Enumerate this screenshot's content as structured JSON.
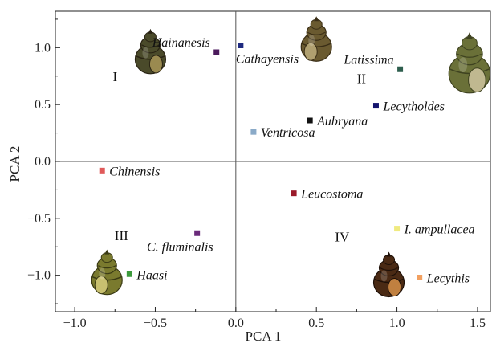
{
  "chart_data": {
    "type": "scatter",
    "xlabel": "PCA 1",
    "ylabel": "PCA 2",
    "xlim": [
      -1.12,
      1.58
    ],
    "ylim": [
      -1.32,
      1.32
    ],
    "xticks": [
      -1.0,
      -0.5,
      0.0,
      0.5,
      1.0,
      1.5
    ],
    "yticks": [
      -1.0,
      -0.5,
      0.0,
      0.5,
      1.0
    ],
    "xtick_labels": [
      "−1.0",
      "−0.5",
      "0.0",
      "0.5",
      "1.0",
      "1.5"
    ],
    "ytick_labels": [
      "−1.0",
      "−0.5",
      "0.0",
      "0.5",
      "1.0"
    ],
    "reference_lines": {
      "x": 0,
      "y": 0
    },
    "points": [
      {
        "label": "Hainanesis",
        "x": -0.12,
        "y": 0.96,
        "color": "#4b1a5c",
        "label_side": "upper-left"
      },
      {
        "label": "Cathayensis",
        "x": 0.03,
        "y": 1.02,
        "color": "#1f2a80",
        "label_side": "below"
      },
      {
        "label": "Latissima",
        "x": 1.02,
        "y": 0.81,
        "color": "#2e5e4e",
        "label_side": "upper-left"
      },
      {
        "label": "Lecytholdes",
        "x": 0.87,
        "y": 0.49,
        "color": "#14146e",
        "label_side": "right"
      },
      {
        "label": "Aubryana",
        "x": 0.46,
        "y": 0.36,
        "color": "#111111",
        "label_side": "right"
      },
      {
        "label": "Ventricosa",
        "x": 0.11,
        "y": 0.26,
        "color": "#8aaac8",
        "label_side": "right"
      },
      {
        "label": "Chinensis",
        "x": -0.83,
        "y": -0.08,
        "color": "#e05a5a",
        "label_side": "right"
      },
      {
        "label": "Leucostoma",
        "x": 0.36,
        "y": -0.28,
        "color": "#9a1a2a",
        "label_side": "right"
      },
      {
        "label": "C. fluminalis",
        "x": -0.24,
        "y": -0.63,
        "color": "#6a2a7a",
        "label_side": "lower-left"
      },
      {
        "label": "I. ampullacea",
        "x": 1.0,
        "y": -0.59,
        "color": "#f0ea80",
        "label_side": "right"
      },
      {
        "label": "Haasi",
        "x": -0.66,
        "y": -0.99,
        "color": "#3c9a3c",
        "label_side": "right"
      },
      {
        "label": "Lecythis",
        "x": 1.14,
        "y": -1.02,
        "color": "#f2a060",
        "label_side": "right"
      }
    ],
    "quadrant_labels": [
      {
        "label": "I",
        "x": -0.75,
        "y": 0.75
      },
      {
        "label": "II",
        "x": 0.78,
        "y": 0.73
      },
      {
        "label": "III",
        "x": -0.71,
        "y": -0.65
      },
      {
        "label": "IV",
        "x": 0.66,
        "y": -0.66
      }
    ],
    "shell_images": [
      {
        "name": "snail-shell-hainanesis",
        "x": -0.53,
        "y": 0.94,
        "style": "dark-olive",
        "aperture": "right"
      },
      {
        "name": "snail-shell-cathayensis",
        "x": 0.5,
        "y": 1.05,
        "style": "olive-brown",
        "aperture": "left"
      },
      {
        "name": "snail-shell-latissima",
        "x": 1.45,
        "y": 0.83,
        "style": "olive-green",
        "aperture": "right"
      },
      {
        "name": "snail-shell-haasi",
        "x": -0.8,
        "y": -1.0,
        "style": "olive-yellow",
        "aperture": "left"
      },
      {
        "name": "snail-shell-lecythis",
        "x": 0.95,
        "y": -1.02,
        "style": "dark-brown",
        "aperture": "right"
      }
    ]
  }
}
